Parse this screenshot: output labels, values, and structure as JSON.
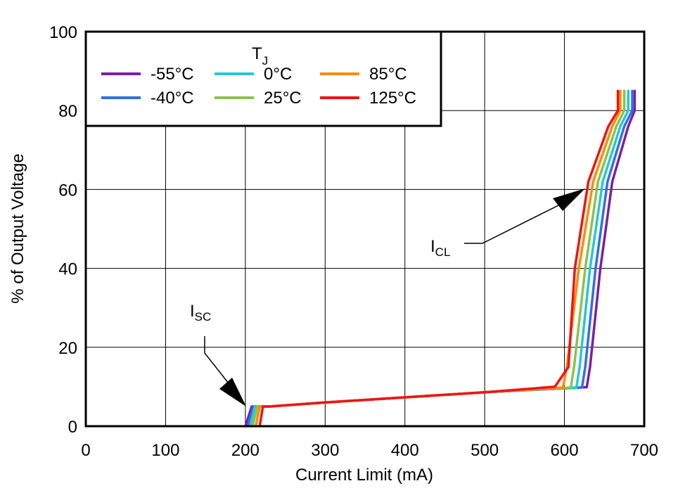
{
  "chart_data": {
    "type": "line",
    "xlabel": "Current Limit (mA)",
    "ylabel": "% of Output Voltage",
    "xlim": [
      0,
      700
    ],
    "ylim": [
      0,
      100
    ],
    "xticks": [
      "0",
      "100",
      "200",
      "300",
      "400",
      "500",
      "600",
      "700"
    ],
    "yticks": [
      "0",
      "20",
      "40",
      "60",
      "80",
      "100"
    ],
    "grid": true,
    "legend": {
      "title_main": "T",
      "title_sub": "J",
      "placement": "top-left"
    },
    "series": [
      {
        "name": "-55°C",
        "color": "#7B1FA2",
        "x": [
          200,
          208,
          230,
          300,
          400,
          500,
          628,
          632,
          645,
          660,
          680,
          688,
          688
        ],
        "y": [
          0,
          5,
          5,
          6,
          7.3,
          8.6,
          9.9,
          15,
          40,
          62,
          76,
          80,
          85
        ]
      },
      {
        "name": "-40°C",
        "color": "#2F6FE8",
        "x": [
          203,
          210,
          230,
          300,
          400,
          500,
          622,
          626,
          639,
          654,
          675,
          685,
          685
        ],
        "y": [
          0,
          5,
          5,
          6,
          7.3,
          8.6,
          9.8,
          15,
          40,
          62,
          76,
          80,
          85
        ]
      },
      {
        "name": "0°C",
        "color": "#26C6DA",
        "x": [
          206,
          212,
          230,
          300,
          400,
          500,
          615,
          619,
          632,
          648,
          670,
          680,
          680
        ],
        "y": [
          0,
          5,
          5,
          6,
          7.3,
          8.6,
          9.8,
          15,
          40,
          62,
          76,
          80,
          85
        ]
      },
      {
        "name": "25°C",
        "color": "#8BC34A",
        "x": [
          209,
          215,
          230,
          300,
          400,
          500,
          608,
          612,
          626,
          642,
          665,
          675,
          675
        ],
        "y": [
          0,
          5,
          5,
          6,
          7.3,
          8.6,
          9.8,
          15,
          40,
          62,
          76,
          80,
          85
        ]
      },
      {
        "name": "85°C",
        "color": "#FF8C00",
        "x": [
          213,
          218,
          230,
          300,
          400,
          500,
          598,
          603,
          618,
          636,
          660,
          670,
          670
        ],
        "y": [
          0,
          5,
          5,
          6,
          7.3,
          8.6,
          9.8,
          15,
          40,
          62,
          76,
          80,
          85
        ]
      },
      {
        "name": "125°C",
        "color": "#F01414",
        "x": [
          218,
          222,
          230,
          300,
          400,
          500,
          588,
          605,
          613,
          630,
          655,
          667,
          667
        ],
        "y": [
          0,
          5,
          5,
          6,
          7.3,
          8.6,
          10,
          15,
          40,
          62,
          76,
          80,
          85
        ]
      }
    ],
    "annotations": [
      {
        "main": "I",
        "sub": "CL"
      },
      {
        "main": "I",
        "sub": "SC"
      }
    ]
  }
}
